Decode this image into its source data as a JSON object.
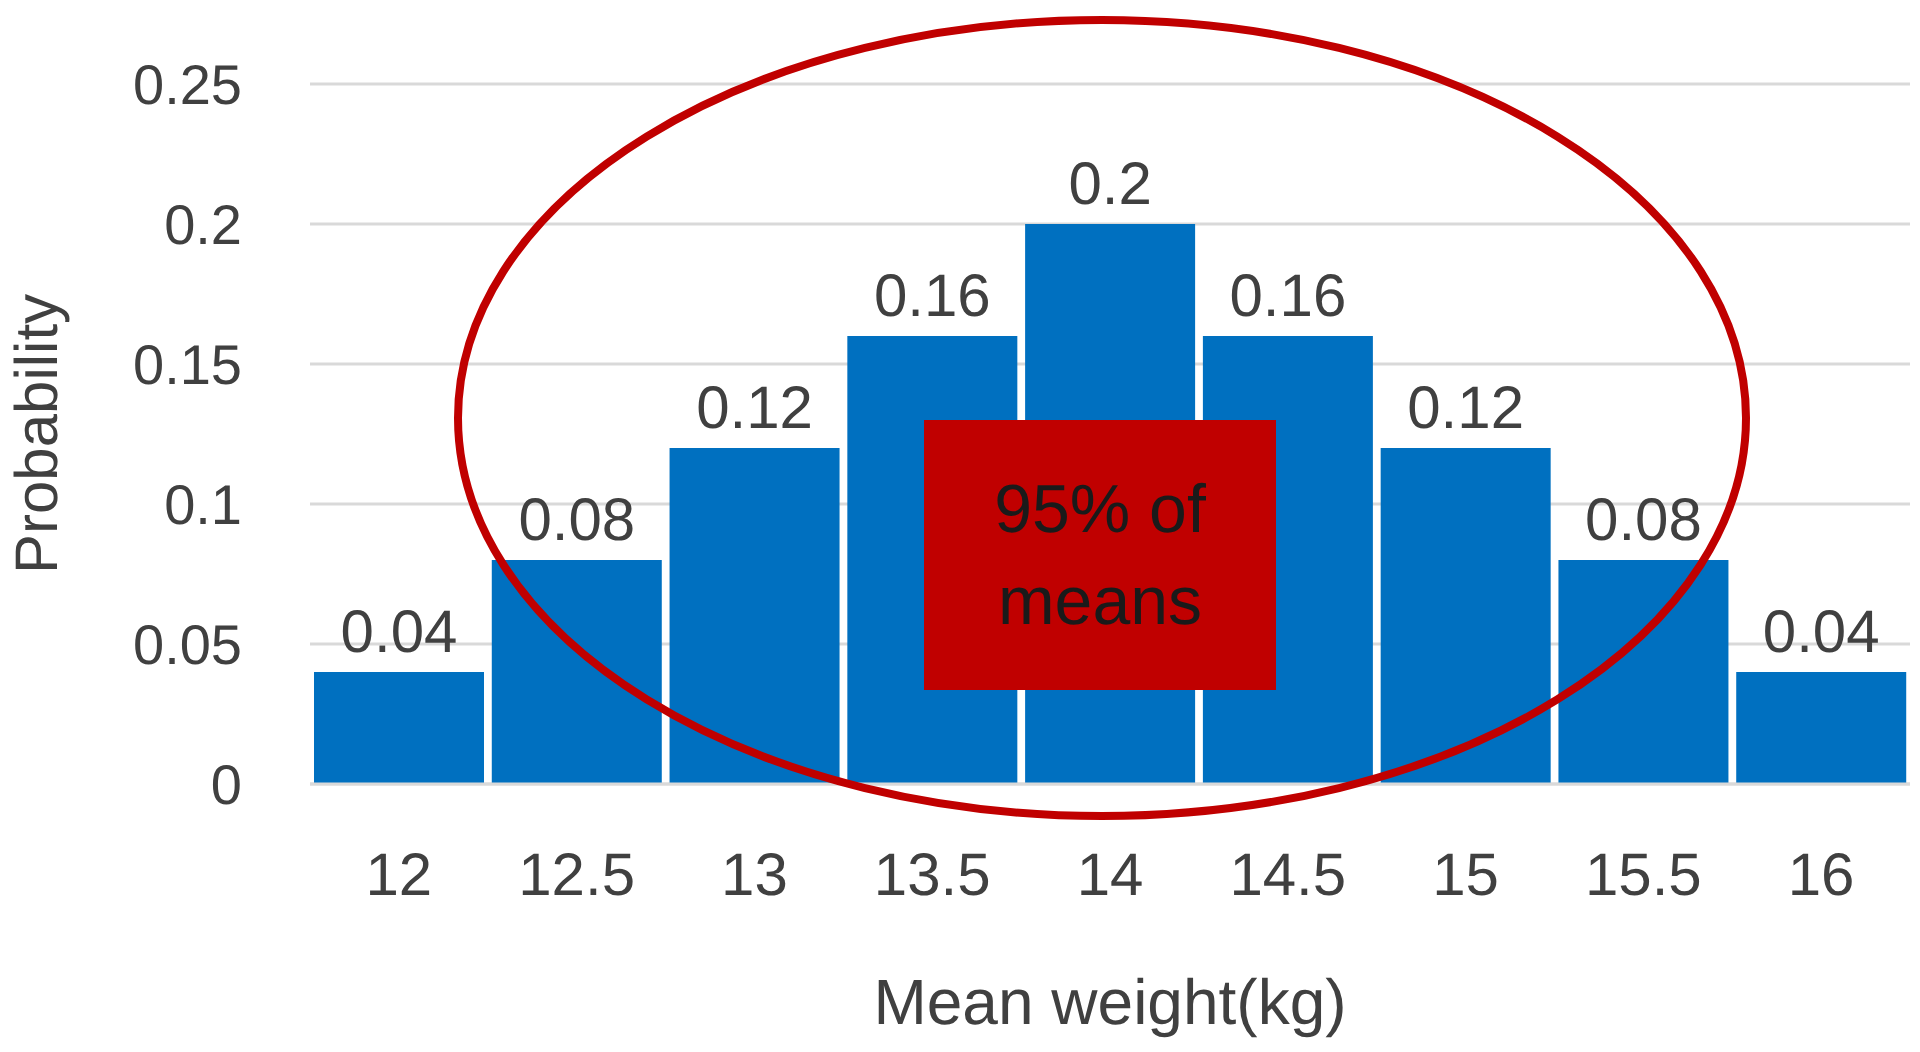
{
  "chart_data": {
    "type": "bar",
    "xlabel": "Mean weight(kg)",
    "ylabel": "Probability",
    "categories": [
      "12",
      "12.5",
      "13",
      "13.5",
      "14",
      "14.5",
      "15",
      "15.5",
      "16"
    ],
    "values": [
      0.04,
      0.08,
      0.12,
      0.16,
      0.2,
      0.16,
      0.12,
      0.08,
      0.04
    ],
    "color": "#0070c0",
    "ylim": [
      0,
      0.25
    ],
    "yticks": [
      0,
      0.05,
      0.1,
      0.15,
      0.2,
      0.25
    ],
    "grid": "y",
    "data_labels": true,
    "annotations": [
      "95% of means"
    ]
  }
}
